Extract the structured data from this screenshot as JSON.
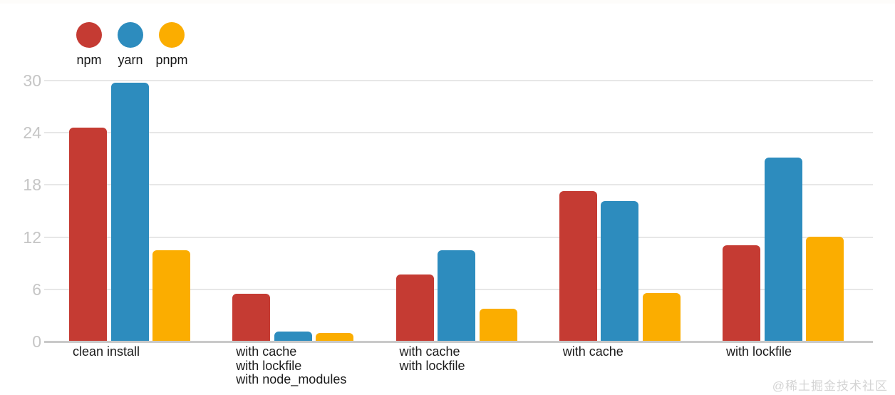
{
  "watermark": "@稀土掘金技术社区",
  "colors": {
    "npm": "#C53B33",
    "yarn": "#2D8CBE",
    "pnpm": "#FBAD00",
    "grid_minor": "#E7E7E7",
    "grid_axis": "#C9C9C9",
    "ytick_text": "#C5C5C5",
    "category_text": "#1B1B1B"
  },
  "chart_data": {
    "type": "bar",
    "title": "",
    "xlabel": "",
    "ylabel": "",
    "categories": [
      [
        "clean install"
      ],
      [
        "with cache",
        "with lockfile",
        "with node_modules"
      ],
      [
        "with cache",
        "with lockfile"
      ],
      [
        "with cache"
      ],
      [
        "with lockfile"
      ]
    ],
    "series": [
      {
        "name": "npm",
        "color": "#C53B33",
        "values": [
          24.5,
          5.4,
          7.6,
          17.2,
          11.0
        ]
      },
      {
        "name": "yarn",
        "color": "#2D8CBE",
        "values": [
          29.7,
          1.1,
          10.4,
          16.1,
          21.1
        ]
      },
      {
        "name": "pnpm",
        "color": "#FBAD00",
        "values": [
          10.4,
          0.9,
          3.7,
          5.5,
          12.0
        ]
      }
    ],
    "ylim": [
      0,
      30
    ],
    "yticks": [
      0,
      6,
      12,
      18,
      24,
      30
    ],
    "grid": true,
    "legend_position": "top-left",
    "legend_labels": [
      "npm",
      "yarn",
      "pnpm"
    ]
  }
}
